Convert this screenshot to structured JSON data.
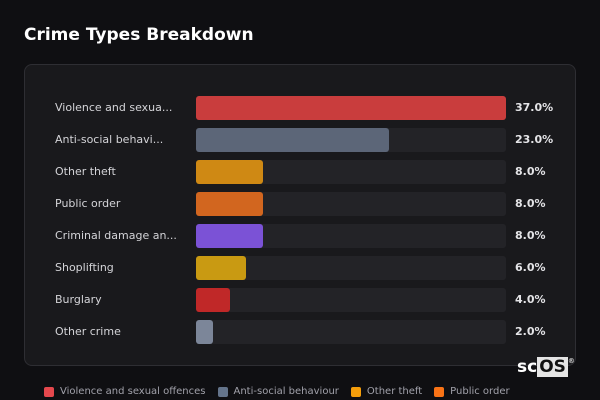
{
  "title": "Crime Types Breakdown",
  "logo": {
    "a": "sc",
    "b": "OS",
    "mark": "®"
  },
  "chart_data": {
    "type": "bar",
    "orientation": "horizontal",
    "title": "Crime Types Breakdown",
    "categories": [
      "Violence and sexua...",
      "Anti-social behavi...",
      "Other theft",
      "Public order",
      "Criminal damage an...",
      "Shoplifting",
      "Burglary",
      "Other crime"
    ],
    "values": [
      37.0,
      23.0,
      8.0,
      8.0,
      8.0,
      6.0,
      4.0,
      2.0
    ],
    "value_labels": [
      "37.0%",
      "23.0%",
      "8.0%",
      "8.0%",
      "8.0%",
      "6.0%",
      "4.0%",
      "2.0%"
    ],
    "colors": [
      "#c93d3d",
      "#5c6678",
      "#cf8914",
      "#d2661f",
      "#7b52d6",
      "#c99a12",
      "#c02828",
      "#7c8699"
    ],
    "legend": [
      {
        "name": "Violence and sexual offences",
        "color": "#e5484d"
      },
      {
        "name": "Anti-social behaviour",
        "color": "#64748b"
      },
      {
        "name": "Other theft",
        "color": "#f59e0b"
      },
      {
        "name": "Public order",
        "color": "#f97316"
      }
    ],
    "legend_position": "bottom"
  }
}
